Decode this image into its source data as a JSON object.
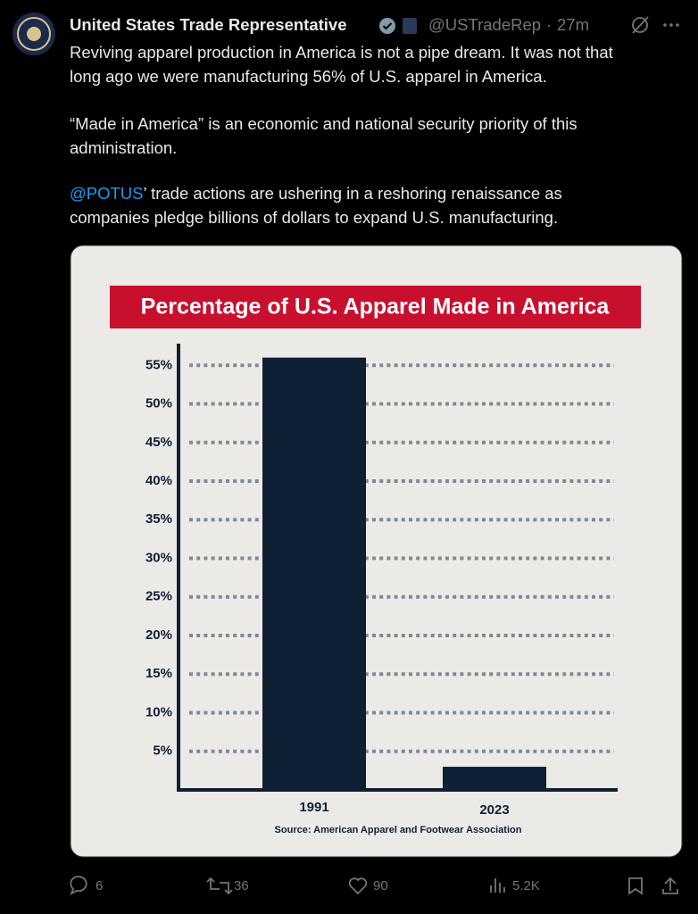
{
  "post": {
    "author": "United States Trade Representative",
    "handle": "@USTradeRep",
    "separator": "·",
    "time": "27m",
    "paragraphs": [
      [
        "Reviving apparel production in America is not a pipe dream. It was not that",
        "long ago we were manufacturing 56% of U.S. apparel in America."
      ],
      [
        "“Made in America” is an economic and national security priority of this",
        "administration."
      ]
    ],
    "mention": "@POTUS",
    "mention_lines": [
      "’ trade actions are ushering in a reshoring renaissance as",
      "companies pledge billions of dollars to expand U.S. manufacturing."
    ],
    "metrics": {
      "replies": 6,
      "reposts": 36,
      "likes": 90,
      "views": "5.2K"
    }
  },
  "chart_data": {
    "type": "bar",
    "title": "Percentage of U.S. Apparel Made in America",
    "title_background": "#c8102e",
    "categories": [
      "1991",
      "2023"
    ],
    "values": [
      56,
      3
    ],
    "color": "#0f2035",
    "ylim": [
      0,
      57
    ],
    "yticks": [
      {
        "value": 5,
        "label": "5%"
      },
      {
        "value": 10,
        "label": "10%"
      },
      {
        "value": 15,
        "label": "15%"
      },
      {
        "value": 20,
        "label": "20%"
      },
      {
        "value": 25,
        "label": "25%"
      },
      {
        "value": 30,
        "label": "30%"
      },
      {
        "value": 35,
        "label": "35%"
      },
      {
        "value": 40,
        "label": "40%"
      },
      {
        "value": 45,
        "label": "45%"
      },
      {
        "value": 50,
        "label": "50%"
      },
      {
        "value": 55,
        "label": "55%"
      }
    ],
    "grid": true,
    "source": "Source: American Apparel and Footwear Association"
  }
}
